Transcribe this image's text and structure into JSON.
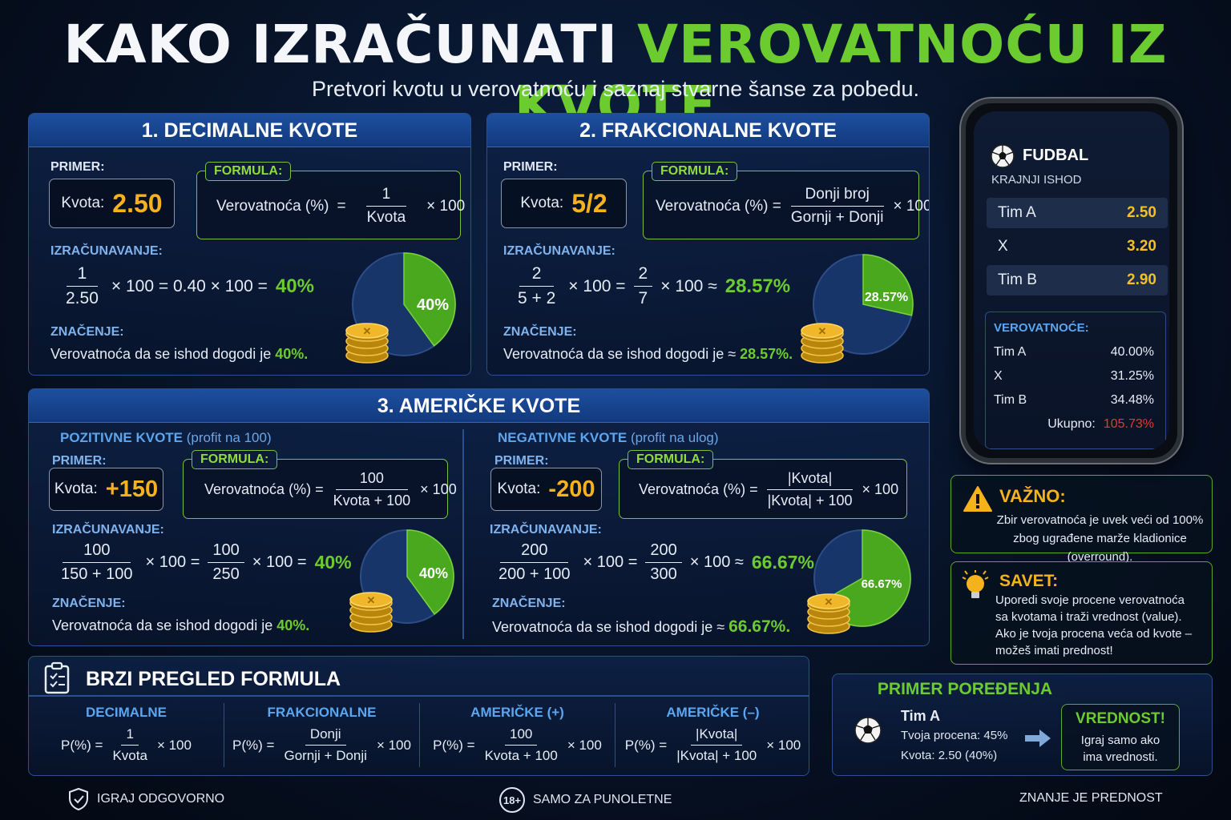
{
  "header": {
    "title_white": "KAKO IZRAČUNATI ",
    "title_green": "VEROVATNOĆU IZ KVOTE",
    "subtitle": "Pretvori kvotu u verovatnoću i saznaj stvarne šanse za pobedu."
  },
  "decimal": {
    "heading": "1. DECIMALNE KVOTE",
    "example_label": "PRIMER:",
    "kvota_label": "Kvota:",
    "kvota_value": "2.50",
    "formula_tag": "FORMULA:",
    "formula_lhs": "Verovatnoća (%)",
    "formula_eq": "=",
    "formula_num": "1",
    "formula_den": "Kvota",
    "formula_mult": "× 100",
    "calc_label": "IZRAČUNAVANJE:",
    "calc_num": "1",
    "calc_den": "2.50",
    "calc_rest": "× 100  =  0.40 × 100  =",
    "calc_result": "40%",
    "meaning_label": "ZNAČENJE:",
    "meaning_text": "Verovatnoća da se ishod dogodi je",
    "meaning_value": "40%.",
    "pie_label": "40%",
    "pie_value": 40
  },
  "fractional": {
    "heading": "2. FRAKCIONALNE KVOTE",
    "example_label": "PRIMER:",
    "kvota_label": "Kvota:",
    "kvota_value": "5/2",
    "formula_tag": "FORMULA:",
    "formula_lhs": "Verovatnoća (%) =",
    "formula_num": "Donji broj",
    "formula_den": "Gornji + Donji",
    "formula_mult": "× 100",
    "calc_label": "IZRAČUNAVANJE:",
    "calc_num1": "2",
    "calc_den1": "5 + 2",
    "calc_mid1": "× 100  =",
    "calc_num2": "2",
    "calc_den2": "7",
    "calc_mid2": "× 100  ≈",
    "calc_result": "28.57%",
    "meaning_label": "ZNAČENJE:",
    "meaning_text": "Verovatnoća da se ishod dogodi je ≈",
    "meaning_value": "28.57%.",
    "pie_label": "28.57%",
    "pie_value": 28.57
  },
  "american": {
    "heading": "3. AMERIČKE KVOTE",
    "positive": {
      "title": "POZITIVNE KVOTE",
      "title_note": "(profit na 100)",
      "example_label": "PRIMER:",
      "kvota_label": "Kvota:",
      "kvota_value": "+150",
      "formula_tag": "FORMULA:",
      "formula_lhs": "Verovatnoća (%) =",
      "formula_num": "100",
      "formula_den": "Kvota + 100",
      "formula_mult": "× 100",
      "calc_label": "IZRAČUNAVANJE:",
      "calc_num1": "100",
      "calc_den1": "150 + 100",
      "calc_mid1": "× 100   =",
      "calc_num2": "100",
      "calc_den2": "250",
      "calc_mid2": "× 100  =",
      "calc_result": "40%",
      "meaning_label": "ZNAČENJE:",
      "meaning_text": "Verovatnoća da se ishod dogodi je",
      "meaning_value": "40%.",
      "pie_label": "40%",
      "pie_value": 40
    },
    "negative": {
      "title": "NEGATIVNE KVOTE",
      "title_note": "(profit na ulog)",
      "example_label": "PRIMER:",
      "kvota_label": "Kvota:",
      "kvota_value": "-200",
      "formula_tag": "FORMULA:",
      "formula_lhs": "Verovatnoća (%) =",
      "formula_num": "|Kvota|",
      "formula_den": "|Kvota| + 100",
      "formula_mult": "× 100",
      "calc_label": "IZRAČUNAVANJE:",
      "calc_num1": "200",
      "calc_den1": "200 + 100",
      "calc_mid1": "× 100  =",
      "calc_num2": "200",
      "calc_den2": "300",
      "calc_mid2": "× 100  ≈",
      "calc_result": "66.67%.",
      "meaning_label": "ZNAČENJE:",
      "meaning_text": "Verovatnoća da se ishod dogodi je ≈",
      "meaning_value": "66.67%.",
      "pie_label": "66.67%",
      "pie_value": 66.67
    }
  },
  "quick": {
    "title": "BRZI PREGLED FORMULA",
    "cols": [
      {
        "title": "DECIMALNE",
        "lhs": "P(%) =",
        "num": "1",
        "den": "Kvota",
        "mult": "× 100"
      },
      {
        "title": "FRAKCIONALNE",
        "lhs": "P(%) =",
        "num": "Donji",
        "den": "Gornji + Donji",
        "mult": "× 100"
      },
      {
        "title": "AMERIČKE (+)",
        "lhs": "P(%) =",
        "num": "100",
        "den": "Kvota + 100",
        "mult": "× 100"
      },
      {
        "title": "AMERIČKE (–)",
        "lhs": "P(%) =",
        "num": "|Kvota|",
        "den": "|Kvota| + 100",
        "mult": "× 100"
      }
    ]
  },
  "phone": {
    "sport": "FUDBAL",
    "market": "KRAJNJI ISHOD",
    "odds": [
      {
        "name": "Tim A",
        "odd": "2.50"
      },
      {
        "name": "X",
        "odd": "3.20"
      },
      {
        "name": "Tim B",
        "odd": "2.90"
      }
    ],
    "prob_title": "VEROVATNOĆE:",
    "probs": [
      {
        "name": "Tim A",
        "value": "40.00%"
      },
      {
        "name": "X",
        "value": "31.25%"
      },
      {
        "name": "Tim B",
        "value": "34.48%"
      }
    ],
    "total_label": "Ukupno:",
    "total_value": "105.73%"
  },
  "important": {
    "title": "VAŽNO:",
    "line1": "Zbir verovatnoća je uvek veći od 100%",
    "line2": "zbog ugrađene marže kladionice (overround)."
  },
  "tip": {
    "title": "SAVET:",
    "lines": [
      "Uporedi svoje procene verovatnoća",
      "sa kvotama i traži vrednost (value).",
      "Ako je tvoja procena veća od kvote –",
      "možeš imati prednost!"
    ]
  },
  "compare": {
    "title": "PRIMER POREĐENJA",
    "team": "Tim A",
    "estimate": "Tvoja procena: 45%",
    "odds": "Kvota: 2.50 (40%)",
    "value_title": "VREDNOST!",
    "value_line1": "Igraj samo ako",
    "value_line2": "ima vrednosti."
  },
  "footer": {
    "left": "IGRAJ ODGOVORNO",
    "badge": "18+",
    "middle": "SAMO ZA PUNOLETNE",
    "right": "ZNANJE JE PREDNOST"
  },
  "colors": {
    "green": "#6ccb2e",
    "gold": "#f5b21c",
    "blue_panel": "#1d4fa0",
    "red": "#e23a2e"
  }
}
